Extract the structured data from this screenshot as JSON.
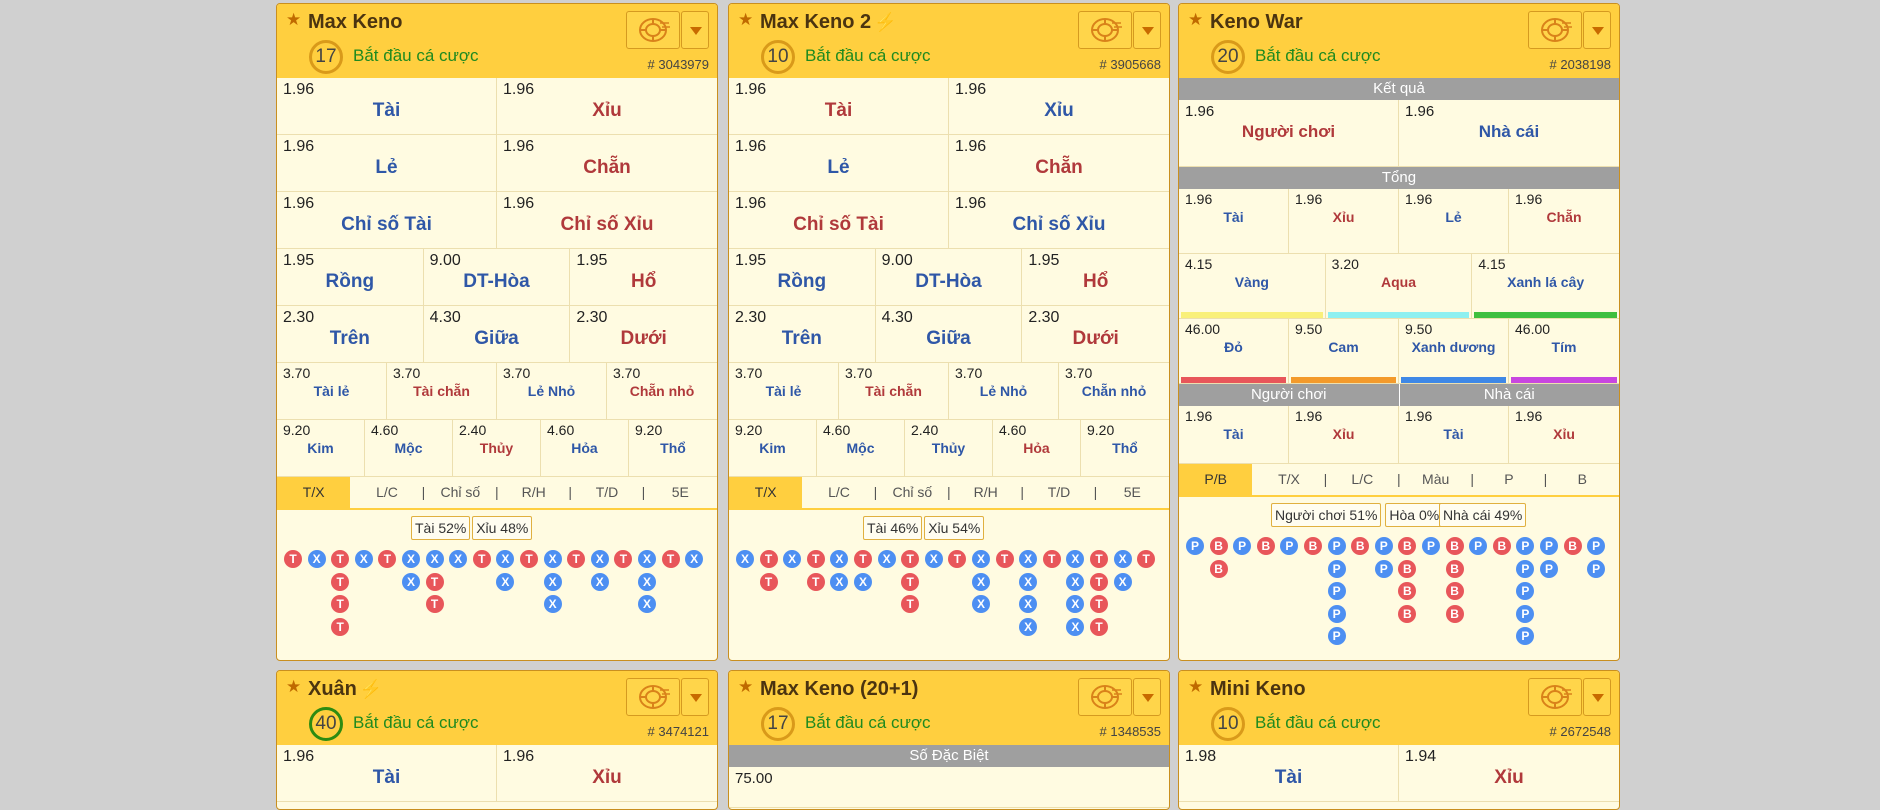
{
  "colors": {
    "accent": "#ffcf3f",
    "card_bg": "#fffbe1",
    "red": "#b0393b",
    "blue": "#2f57a7",
    "dot_red": "#e8565a",
    "dot_blue": "#4d8ff2",
    "green": "#1f8a1f"
  },
  "icons": {
    "star": "star-icon",
    "chip": "chip-icon",
    "dropdown": "caret-down-icon",
    "bolt": "lightning-icon"
  },
  "cards": [
    {
      "title": "Max Keno",
      "bolt": false,
      "timer": "17",
      "timer_color": "orange",
      "status": "Bắt đầu cá cược",
      "round": "# 3043979",
      "rows": [
        {
          "style": "r56",
          "cells": [
            {
              "odd": "1.96",
              "label": "Tài",
              "color": "b"
            },
            {
              "odd": "1.96",
              "label": "Xỉu",
              "color": "r"
            }
          ]
        },
        {
          "style": "r56",
          "cells": [
            {
              "odd": "1.96",
              "label": "Lẻ",
              "color": "b"
            },
            {
              "odd": "1.96",
              "label": "Chẵn",
              "color": "r"
            }
          ]
        },
        {
          "style": "r56",
          "cells": [
            {
              "odd": "1.96",
              "label": "Chỉ số Tài",
              "color": "b"
            },
            {
              "odd": "1.96",
              "label": "Chỉ số Xỉu",
              "color": "r"
            }
          ]
        },
        {
          "style": "r56",
          "cells": [
            {
              "odd": "1.95",
              "label": "Rồng",
              "color": "b"
            },
            {
              "odd": "9.00",
              "label": "DT-Hòa",
              "color": "b"
            },
            {
              "odd": "1.95",
              "label": "Hổ",
              "color": "r"
            }
          ]
        },
        {
          "style": "r56",
          "cells": [
            {
              "odd": "2.30",
              "label": "Trên",
              "color": "b"
            },
            {
              "odd": "4.30",
              "label": "Giữa",
              "color": "b"
            },
            {
              "odd": "2.30",
              "label": "Dưới",
              "color": "r"
            }
          ]
        },
        {
          "style": "rsm",
          "cells": [
            {
              "odd": "3.70",
              "label": "Tài lẻ",
              "color": "b"
            },
            {
              "odd": "3.70",
              "label": "Tài chẵn",
              "color": "r"
            },
            {
              "odd": "3.70",
              "label": "Lẻ Nhỏ",
              "color": "b"
            },
            {
              "odd": "3.70",
              "label": "Chẵn nhỏ",
              "color": "r"
            }
          ]
        },
        {
          "style": "rsm",
          "cells": [
            {
              "odd": "9.20",
              "label": "Kim",
              "color": "b"
            },
            {
              "odd": "4.60",
              "label": "Mộc",
              "color": "b"
            },
            {
              "odd": "2.40",
              "label": "Thủy",
              "color": "r"
            },
            {
              "odd": "4.60",
              "label": "Hỏa",
              "color": "b"
            },
            {
              "odd": "9.20",
              "label": "Thổ",
              "color": "b"
            }
          ]
        }
      ],
      "tabs": [
        "T/X",
        "L/C",
        "Chỉ số",
        "R/H",
        "T/D",
        "5E"
      ],
      "stats": [
        {
          "text": "Tài 52%"
        },
        {
          "text": "Xỉu 48%"
        }
      ],
      "stats_left": 134,
      "road": [
        "T",
        "X",
        "TTTT",
        "X",
        "T",
        "XX",
        "XTT",
        "X",
        "T",
        "XX",
        "T",
        "XXX",
        "T",
        "XX",
        "T",
        "XXX",
        "T",
        "X"
      ]
    },
    {
      "title": "Max Keno 2",
      "bolt": true,
      "timer": "10",
      "timer_color": "orange",
      "status": "Bắt đầu cá cược",
      "round": "# 3905668",
      "rows": [
        {
          "style": "r56",
          "cells": [
            {
              "odd": "1.96",
              "label": "Tài",
              "color": "r"
            },
            {
              "odd": "1.96",
              "label": "Xỉu",
              "color": "b"
            }
          ]
        },
        {
          "style": "r56",
          "cells": [
            {
              "odd": "1.96",
              "label": "Lẻ",
              "color": "b"
            },
            {
              "odd": "1.96",
              "label": "Chẵn",
              "color": "r"
            }
          ]
        },
        {
          "style": "r56",
          "cells": [
            {
              "odd": "1.96",
              "label": "Chỉ số Tài",
              "color": "r"
            },
            {
              "odd": "1.96",
              "label": "Chỉ số Xỉu",
              "color": "b"
            }
          ]
        },
        {
          "style": "r56",
          "cells": [
            {
              "odd": "1.95",
              "label": "Rồng",
              "color": "b"
            },
            {
              "odd": "9.00",
              "label": "DT-Hòa",
              "color": "b"
            },
            {
              "odd": "1.95",
              "label": "Hổ",
              "color": "r"
            }
          ]
        },
        {
          "style": "r56",
          "cells": [
            {
              "odd": "2.30",
              "label": "Trên",
              "color": "b"
            },
            {
              "odd": "4.30",
              "label": "Giữa",
              "color": "b"
            },
            {
              "odd": "2.30",
              "label": "Dưới",
              "color": "r"
            }
          ]
        },
        {
          "style": "rsm",
          "cells": [
            {
              "odd": "3.70",
              "label": "Tài lẻ",
              "color": "b"
            },
            {
              "odd": "3.70",
              "label": "Tài chẵn",
              "color": "r"
            },
            {
              "odd": "3.70",
              "label": "Lẻ Nhỏ",
              "color": "b"
            },
            {
              "odd": "3.70",
              "label": "Chẵn nhỏ",
              "color": "b"
            }
          ]
        },
        {
          "style": "rsm",
          "cells": [
            {
              "odd": "9.20",
              "label": "Kim",
              "color": "b"
            },
            {
              "odd": "4.60",
              "label": "Mộc",
              "color": "b"
            },
            {
              "odd": "2.40",
              "label": "Thủy",
              "color": "b"
            },
            {
              "odd": "4.60",
              "label": "Hỏa",
              "color": "r"
            },
            {
              "odd": "9.20",
              "label": "Thổ",
              "color": "b"
            }
          ]
        }
      ],
      "tabs": [
        "T/X",
        "L/C",
        "Chỉ số",
        "R/H",
        "T/D",
        "5E"
      ],
      "stats": [
        {
          "text": "Tài 46%"
        },
        {
          "text": "Xỉu 54%"
        }
      ],
      "stats_left": 134,
      "road": [
        "X",
        "TT",
        "X",
        "TT",
        "XX",
        "TX",
        "X",
        "TTT",
        "X",
        "T",
        "XXX",
        "T",
        "XXXX",
        "T",
        "XXXX",
        "TTTT",
        "XX",
        "T"
      ]
    },
    {
      "title": "Keno War",
      "bolt": false,
      "timer": "20",
      "timer_color": "orange",
      "status": "Bắt đầu cá cược",
      "round": "# 2038198",
      "sec_result": "Kết quả",
      "result_row": [
        {
          "odd": "1.96",
          "label": "Người chơi",
          "color": "r"
        },
        {
          "odd": "1.96",
          "label": "Nhà cái",
          "color": "b"
        }
      ],
      "sec_total": "Tổng",
      "total_rows": [
        {
          "cells": [
            {
              "odd": "1.96",
              "label": "Tài",
              "color": "b"
            },
            {
              "odd": "1.96",
              "label": "Xỉu",
              "color": "r"
            },
            {
              "odd": "1.96",
              "label": "Lẻ",
              "color": "b"
            },
            {
              "odd": "1.96",
              "label": "Chẵn",
              "color": "r"
            }
          ]
        },
        {
          "cells": [
            {
              "odd": "4.15",
              "label": "Vàng",
              "color": "b",
              "bar": "#f9f07a"
            },
            {
              "odd": "3.20",
              "label": "Aqua",
              "color": "r",
              "bar": "#8ef0f0"
            },
            {
              "odd": "4.15",
              "label": "Xanh lá cây",
              "color": "b",
              "bar": "#3fbf3f"
            }
          ]
        },
        {
          "cells": [
            {
              "odd": "46.00",
              "label": "Đỏ",
              "color": "b",
              "bar": "#e8565a"
            },
            {
              "odd": "9.50",
              "label": "Cam",
              "color": "b",
              "bar": "#f39a2b"
            },
            {
              "odd": "9.50",
              "label": "Xanh dương",
              "color": "b",
              "bar": "#3f88e6"
            },
            {
              "odd": "46.00",
              "label": "Tím",
              "color": "b",
              "bar": "#c846e0"
            }
          ]
        }
      ],
      "sec_player": "Người chơi",
      "sec_banker": "Nhà cái",
      "side_row": [
        {
          "odd": "1.96",
          "label": "Tài",
          "color": "b"
        },
        {
          "odd": "1.96",
          "label": "Xỉu",
          "color": "r"
        },
        {
          "odd": "1.96",
          "label": "Tài",
          "color": "b"
        },
        {
          "odd": "1.96",
          "label": "Xỉu",
          "color": "r"
        }
      ],
      "tabs": [
        "P/B",
        "T/X",
        "L/C",
        "Màu",
        "P",
        "B"
      ],
      "stats": [
        {
          "text": "Người chơi 51%"
        },
        {
          "text": "Hòa 0%"
        },
        {
          "text": "Nhà cái 49%"
        }
      ],
      "stats_left": 92,
      "road": [
        "P",
        "BB",
        "P",
        "B",
        "P",
        "B",
        "PPPPP",
        "B",
        "PP",
        "BBBB",
        "P",
        "BBBB",
        "P",
        "B",
        "PPPPP",
        "PP",
        "B",
        "PP"
      ]
    },
    {
      "title": "Xuân",
      "bolt": true,
      "timer": "40",
      "timer_color": "green",
      "status": "Bắt đầu cá cược",
      "round": "# 3474121",
      "rows": [
        {
          "style": "r56",
          "cells": [
            {
              "odd": "1.96",
              "label": "Tài",
              "color": "b"
            },
            {
              "odd": "1.96",
              "label": "Xỉu",
              "color": "r"
            }
          ]
        }
      ]
    },
    {
      "title": "Max Keno (20+1)",
      "bolt": false,
      "timer": "17",
      "timer_color": "orange",
      "status": "Bắt đầu cá cược",
      "round": "# 1348535",
      "special_header": "Số Đặc Biệt",
      "special_odd": "75.00"
    },
    {
      "title": "Mini Keno",
      "bolt": false,
      "timer": "10",
      "timer_color": "orange",
      "status": "Bắt đầu cá cược",
      "round": "# 2672548",
      "rows": [
        {
          "style": "r56",
          "cells": [
            {
              "odd": "1.98",
              "label": "Tài",
              "color": "b"
            },
            {
              "odd": "1.94",
              "label": "Xỉu",
              "color": "r"
            }
          ]
        }
      ]
    }
  ]
}
